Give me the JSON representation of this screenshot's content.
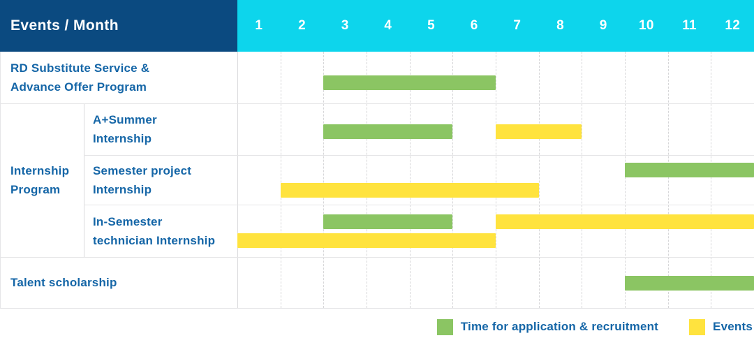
{
  "header": {
    "title": "Events / Month",
    "months": [
      "1",
      "2",
      "3",
      "4",
      "5",
      "6",
      "7",
      "8",
      "9",
      "10",
      "11",
      "12"
    ]
  },
  "row_labels": {
    "rd_substitute": [
      "RD Substitute Service &",
      "Advance Offer Program"
    ],
    "internship_group": [
      "Internship",
      "Program"
    ],
    "a_summer": [
      "A+Summer",
      "Internship"
    ],
    "semester_project": [
      "Semester project",
      "Internship"
    ],
    "in_semester": [
      "In-Semester",
      "technician Internship"
    ],
    "talent": [
      "Talent scholarship"
    ]
  },
  "legend": {
    "items": [
      {
        "key": "application",
        "label": "Time for application & recruitment",
        "color": "#8bc563"
      },
      {
        "key": "event",
        "label": "Events",
        "color": "#ffe33e"
      }
    ]
  },
  "colors": {
    "header_navy": "#0b4a80",
    "header_cyan": "#0dd5ec",
    "bar_green": "#8bc563",
    "bar_yellow": "#ffe33e",
    "label_blue": "#1566a7"
  },
  "chart_data": {
    "type": "bar",
    "subtype": "gantt-schedule",
    "title": "Events / Month",
    "x_categories": [
      "1",
      "2",
      "3",
      "4",
      "5",
      "6",
      "7",
      "8",
      "9",
      "10",
      "11",
      "12"
    ],
    "x_unit": "month",
    "x_range": [
      1,
      12
    ],
    "grid": true,
    "legend_position": "bottom-right",
    "legend": [
      {
        "name": "Time for application & recruitment",
        "color": "#8bc563"
      },
      {
        "name": "Events",
        "color": "#ffe33e"
      }
    ],
    "rows": [
      {
        "label": "RD Substitute Service & Advance Offer Program",
        "group": "",
        "bars": [
          {
            "kind": "application",
            "start_month": 3,
            "end_month": 6,
            "lane": "single"
          }
        ]
      },
      {
        "label": "A+Summer Internship",
        "group": "Internship Program",
        "bars": [
          {
            "kind": "application",
            "start_month": 3,
            "end_month": 5,
            "lane": "single"
          },
          {
            "kind": "event",
            "start_month": 7,
            "end_month": 8,
            "lane": "single"
          }
        ]
      },
      {
        "label": "Semester project Internship",
        "group": "Internship Program",
        "bars": [
          {
            "kind": "application",
            "start_month": 10,
            "end_month": 12,
            "lane": "top"
          },
          {
            "kind": "event",
            "start_month": 2,
            "end_month": 7,
            "lane": "bottom"
          }
        ]
      },
      {
        "label": "In-Semester technician Internship",
        "group": "Internship Program",
        "bars": [
          {
            "kind": "application",
            "start_month": 3,
            "end_month": 5,
            "lane": "top"
          },
          {
            "kind": "event",
            "start_month": 7,
            "end_month": 12,
            "lane": "top"
          },
          {
            "kind": "event",
            "start_month": 1,
            "end_month": 6,
            "lane": "bottom"
          }
        ]
      },
      {
        "label": "Talent scholarship",
        "group": "",
        "bars": [
          {
            "kind": "application",
            "start_month": 10,
            "end_month": 12,
            "lane": "single"
          }
        ]
      }
    ]
  }
}
